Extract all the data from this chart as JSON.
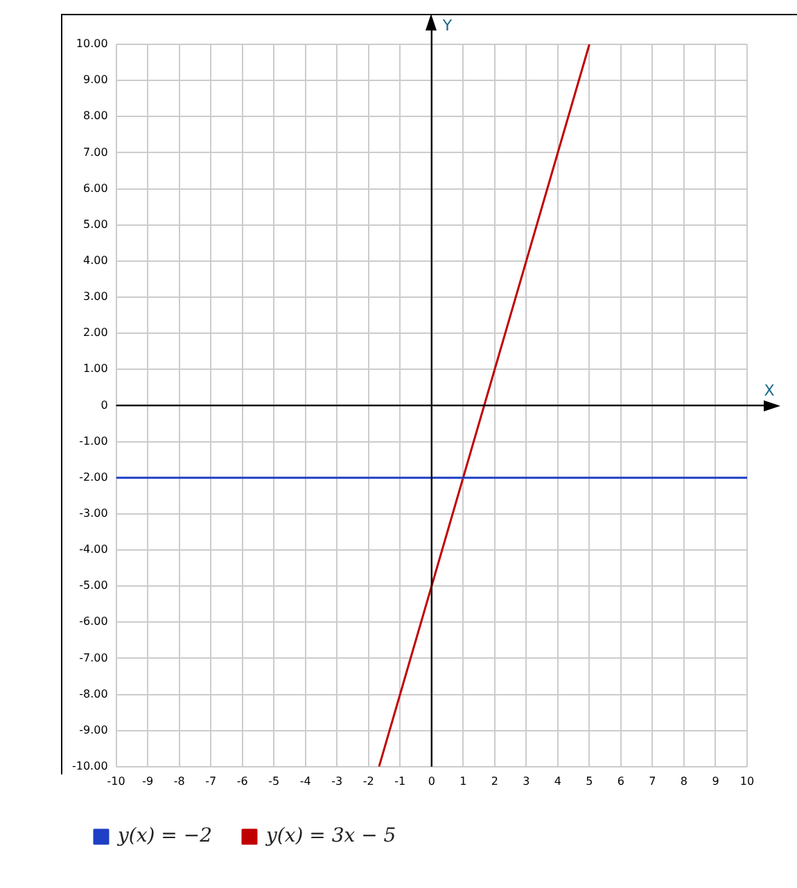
{
  "chart_data": {
    "type": "line",
    "xlabel": "X",
    "ylabel": "Y",
    "xlim": [
      -10,
      10
    ],
    "xticks": [
      -10,
      -9,
      -8,
      -7,
      -6,
      -5,
      -4,
      -3,
      -2,
      -1,
      0,
      1,
      2,
      3,
      4,
      5,
      6,
      7,
      8,
      9,
      10
    ],
    "ylim": [
      -10,
      10
    ],
    "yticks": [
      {
        "value": -10,
        "label": "-10.00"
      },
      {
        "value": -9,
        "label": "-9.00"
      },
      {
        "value": -8,
        "label": "-8.00"
      },
      {
        "value": -7,
        "label": "-7.00"
      },
      {
        "value": -6,
        "label": "-6.00"
      },
      {
        "value": -5,
        "label": "-5.00"
      },
      {
        "value": -4,
        "label": "-4.00"
      },
      {
        "value": -3,
        "label": "-3.00"
      },
      {
        "value": -2,
        "label": "-2.00"
      },
      {
        "value": -1,
        "label": "-1.00"
      },
      0,
      {
        "value": 1,
        "label": "1.00"
      },
      {
        "value": 2,
        "label": "2.00"
      },
      {
        "value": 3,
        "label": "3.00"
      },
      {
        "value": 4,
        "label": "4.00"
      },
      {
        "value": 5,
        "label": "5.00"
      },
      {
        "value": 6,
        "label": "6.00"
      },
      {
        "value": 7,
        "label": "7.00"
      },
      {
        "value": 8,
        "label": "8.00"
      },
      {
        "value": 9,
        "label": "9.00"
      },
      {
        "value": 10,
        "label": "10.00"
      }
    ],
    "grid": true,
    "legend": "bottom",
    "marker": "none",
    "line_style": "solid",
    "series": [
      {
        "name": "y(x) = −2",
        "color": "#1f3fc4",
        "x": [
          -10,
          10
        ],
        "values": [
          -2,
          -2
        ]
      },
      {
        "name": "y(x) = 3x − 5",
        "color": "#c00000",
        "x": [
          -1.667,
          5
        ],
        "values": [
          -10,
          10
        ]
      }
    ]
  }
}
